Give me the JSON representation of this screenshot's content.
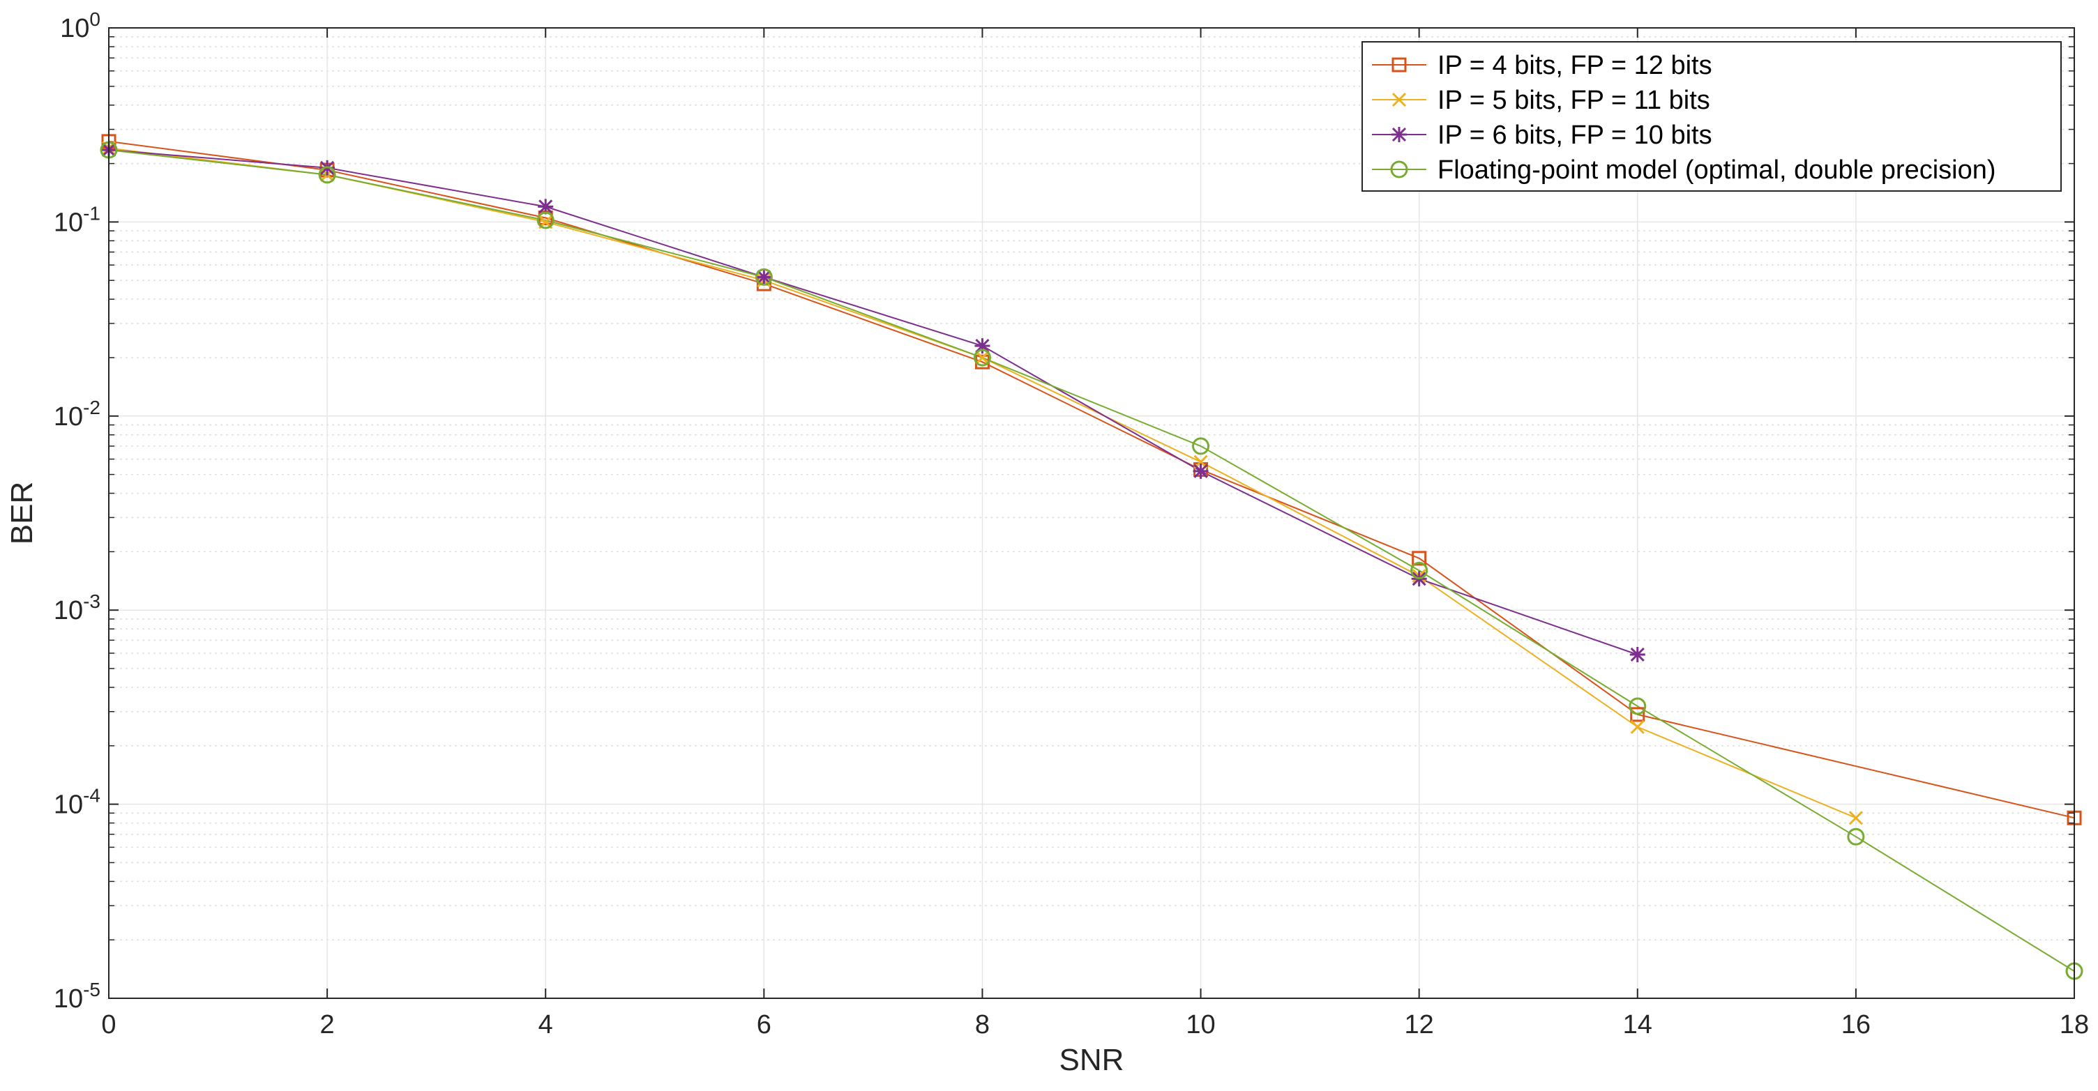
{
  "chart_data": {
    "type": "line",
    "title": "",
    "xlabel": "SNR",
    "ylabel": "BER",
    "x_ticks": [
      0,
      2,
      4,
      6,
      8,
      10,
      12,
      14,
      16,
      18
    ],
    "y_ticks": [
      {
        "base": "10",
        "exp": "0"
      },
      {
        "base": "10",
        "exp": "-1"
      },
      {
        "base": "10",
        "exp": "-2"
      },
      {
        "base": "10",
        "exp": "-3"
      },
      {
        "base": "10",
        "exp": "-4"
      },
      {
        "base": "10",
        "exp": "-5"
      }
    ],
    "xlim": [
      0,
      18
    ],
    "ylim": [
      1e-05,
      1
    ],
    "y_scale": "log",
    "grid": true,
    "legend_position": "top-right",
    "series": [
      {
        "name": "IP = 4 bits, FP = 12 bits",
        "color": "#D95319",
        "marker": "square",
        "points": [
          [
            0,
            0.26
          ],
          [
            2,
            0.185
          ],
          [
            4,
            0.105
          ],
          [
            6,
            0.048
          ],
          [
            8,
            0.019
          ],
          [
            10,
            0.0053
          ],
          [
            12,
            0.00185
          ],
          [
            14,
            0.00029
          ],
          [
            18,
            8.5e-05
          ]
        ]
      },
      {
        "name": "IP = 5 bits, FP = 11 bits",
        "color": "#EDB120",
        "marker": "x",
        "points": [
          [
            0,
            0.24
          ],
          [
            2,
            0.175
          ],
          [
            4,
            0.1
          ],
          [
            6,
            0.05
          ],
          [
            8,
            0.02
          ],
          [
            10,
            0.0058
          ],
          [
            12,
            0.0015
          ],
          [
            14,
            0.00025
          ],
          [
            16,
            8.5e-05
          ]
        ]
      },
      {
        "name": "IP = 6 bits, FP = 10 bits",
        "color": "#7E2F8E",
        "marker": "star",
        "points": [
          [
            0,
            0.235
          ],
          [
            2,
            0.19
          ],
          [
            4,
            0.12
          ],
          [
            6,
            0.052
          ],
          [
            8,
            0.023
          ],
          [
            10,
            0.0052
          ],
          [
            12,
            0.00145
          ],
          [
            14,
            0.00059
          ]
        ]
      },
      {
        "name": "Floating-point model (optimal, double precision)",
        "color": "#77AC30",
        "marker": "circle",
        "points": [
          [
            0,
            0.235
          ],
          [
            2,
            0.175
          ],
          [
            4,
            0.102
          ],
          [
            6,
            0.052
          ],
          [
            8,
            0.02
          ],
          [
            10,
            0.007
          ],
          [
            12,
            0.0016
          ],
          [
            14,
            0.00032
          ],
          [
            16,
            6.8e-05
          ],
          [
            18,
            1.38e-05
          ]
        ]
      }
    ]
  }
}
